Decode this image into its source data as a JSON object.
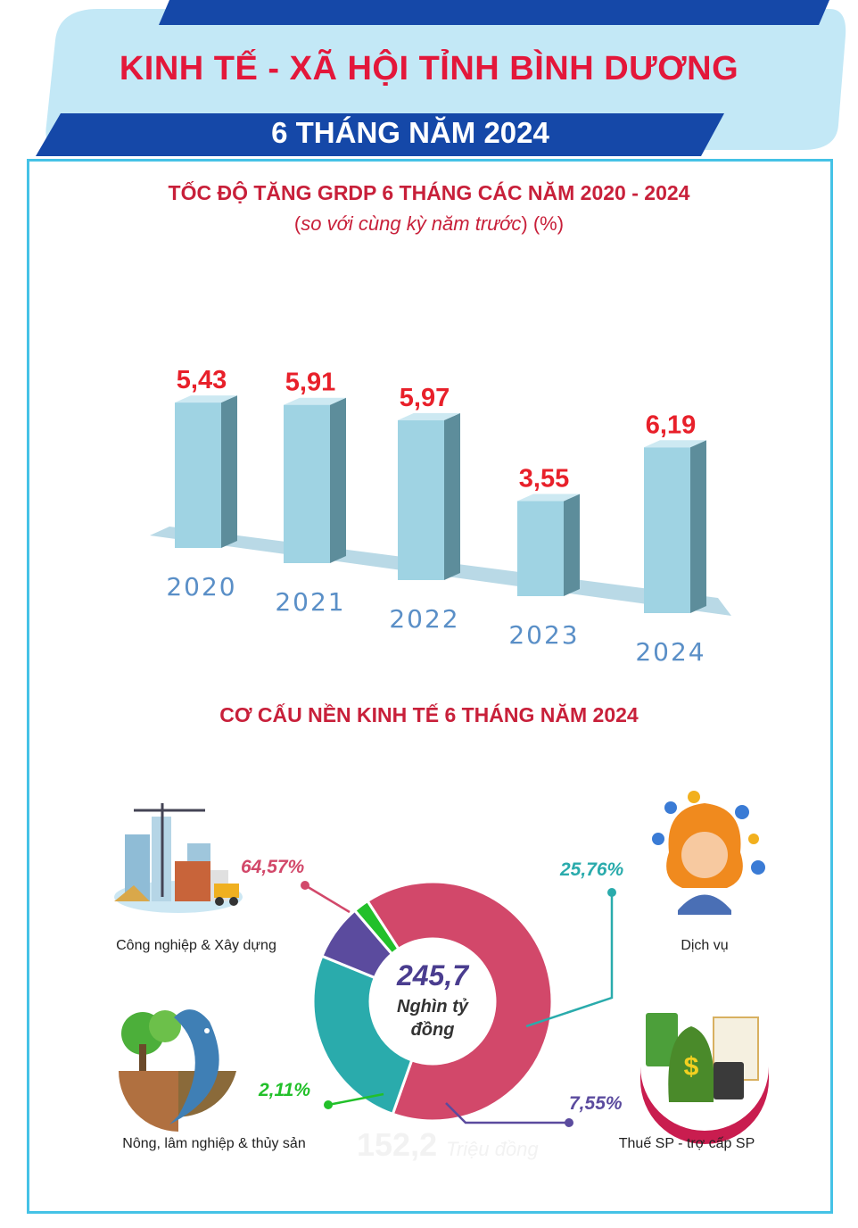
{
  "header": {
    "title": "KINH TẾ - XÃ HỘI TỈNH BÌNH DƯƠNG",
    "subtitle": "6 THÁNG NĂM 2024"
  },
  "colors": {
    "header_light_blue": "#c3e8f6",
    "header_dark_blue": "#1548a8",
    "title_red": "#e3173a",
    "frame_cyan": "#45c2e6",
    "bar_face": "#9fd3e3",
    "bar_side": "#5d8d9b",
    "value_red": "#e8202a",
    "year_blue": "#5a8fc7",
    "industry": "#d2486a",
    "services": "#2aabac",
    "agriculture": "#22c02a",
    "taxes": "#5b4b9e"
  },
  "chart_data": [
    {
      "type": "bar",
      "title": "TỐC ĐỘ TĂNG GRDP 6 THÁNG CÁC NĂM 2020 - 2024",
      "subtitle_italic": "so với cùng kỳ năm trước",
      "subtitle_unit": "(%)",
      "categories": [
        "2020",
        "2021",
        "2022",
        "2023",
        "2024"
      ],
      "values": [
        5.43,
        5.91,
        5.97,
        3.55,
        6.19
      ],
      "value_labels": [
        "5,43",
        "5,91",
        "5,97",
        "3,55",
        "6,19"
      ],
      "ylim": [
        0,
        7
      ]
    },
    {
      "type": "pie",
      "title": "CƠ CẤU NỀN KINH TẾ 6 THÁNG NĂM 2024",
      "center_value": "245,7",
      "center_unit_line1": "Nghìn tỷ",
      "center_unit_line2": "đồng",
      "slices": [
        {
          "label": "Công nghiệp & Xây dựng",
          "value": 64.57,
          "value_label": "64,57%",
          "icon": "construction-icon"
        },
        {
          "label": "Dịch vụ",
          "value": 25.76,
          "value_label": "25,76%",
          "icon": "services-operator-icon"
        },
        {
          "label": "Thuế SP - trợ cấp SP",
          "value": 7.55,
          "value_label": "7,55%",
          "icon": "taxes-money-icon"
        },
        {
          "label": "Nông, lâm nghiệp & thủy sản",
          "value": 2.11,
          "value_label": "2,11%",
          "icon": "agriculture-fish-icon"
        }
      ]
    }
  ],
  "ghost_text": {
    "value": "152,2",
    "unit": "Triệu đồng"
  }
}
